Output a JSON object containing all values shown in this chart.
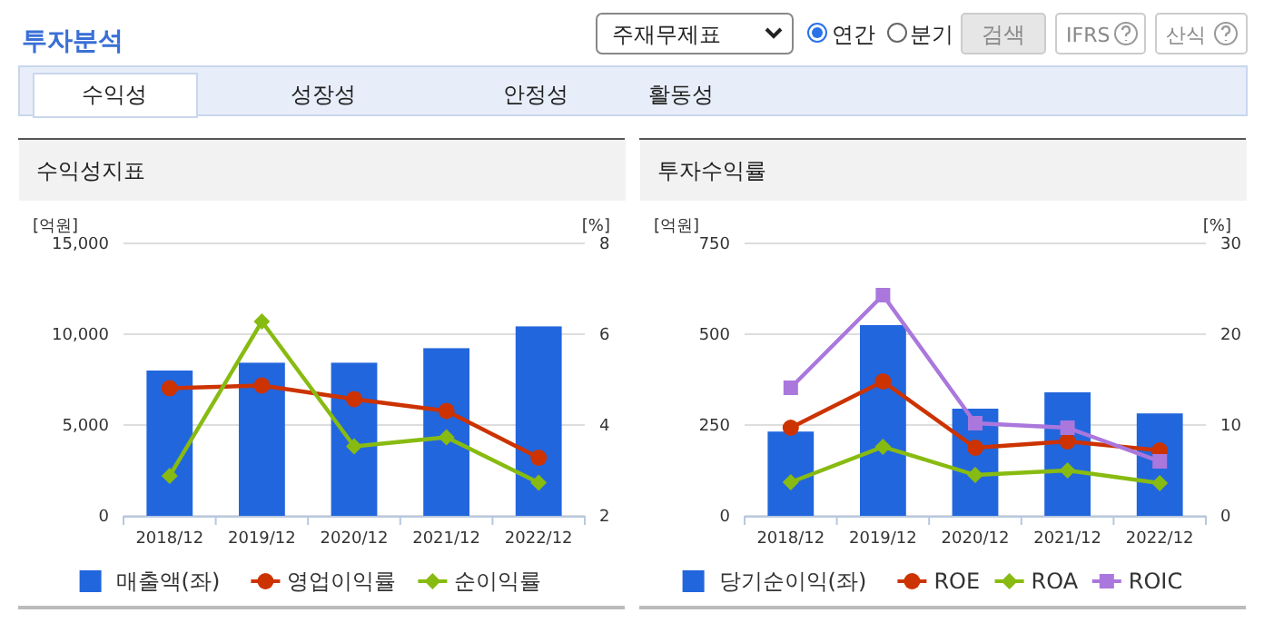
{
  "chart_data": [
    {
      "type": "other",
      "title": "투자분석",
      "annotations": [
        "주재무제표",
        "연간",
        "분기",
        "검색",
        "IFRS",
        "산식",
        "수익성",
        "성장성",
        "안정성",
        "활동성"
      ]
    },
    {
      "type": "bar",
      "title": "수익성지표",
      "ylabel": "[억원]",
      "y2label": "[%]",
      "categories": [
        "2018/12",
        "2019/12",
        "2020/12",
        "2021/12",
        "2022/12"
      ],
      "series": [
        {
          "name": "매출액(좌)",
          "type": "bar",
          "color": "#2266dd",
          "values": [
            8000,
            8430,
            8430,
            9230,
            10430
          ]
        },
        {
          "name": "영업이익률",
          "type": "line",
          "axis": "y2",
          "marker": "circle",
          "color": "#cc3300",
          "values": [
            4.81,
            4.87,
            4.57,
            4.31,
            3.28
          ]
        },
        {
          "name": "순이익률",
          "type": "line",
          "axis": "y2",
          "marker": "diamond",
          "color": "#88bb11",
          "values": [
            2.88,
            6.28,
            3.53,
            3.73,
            2.73
          ]
        }
      ],
      "ylim": [
        0,
        15000
      ],
      "yticks": [
        0,
        {
          "value": 5000,
          "label": "5,000"
        },
        {
          "value": 10000,
          "label": "10,000"
        },
        {
          "value": 15000,
          "label": "15,000"
        }
      ],
      "y2lim": [
        2,
        8
      ],
      "y2ticks": [
        2,
        4,
        6,
        8
      ],
      "grid": "y",
      "legend": "bottom"
    },
    {
      "type": "bar",
      "title": "투자수익률",
      "ylabel": "[억원]",
      "y2label": "[%]",
      "categories": [
        "2018/12",
        "2019/12",
        "2020/12",
        "2021/12",
        "2022/12"
      ],
      "series": [
        {
          "name": "당기순이익(좌)",
          "type": "bar",
          "color": "#2266dd",
          "values": [
            232,
            525,
            295,
            340,
            282
          ]
        },
        {
          "name": "ROE",
          "type": "line",
          "axis": "y2",
          "marker": "circle",
          "color": "#cc3300",
          "values": [
            9.7,
            14.8,
            7.5,
            8.2,
            7.2
          ]
        },
        {
          "name": "ROA",
          "type": "line",
          "axis": "y2",
          "marker": "diamond",
          "color": "#88bb11",
          "values": [
            3.7,
            7.6,
            4.5,
            5.0,
            3.6
          ]
        },
        {
          "name": "ROIC",
          "type": "line",
          "axis": "y2",
          "marker": "square",
          "color": "#aa77dd",
          "values": [
            14.1,
            24.3,
            10.2,
            9.7,
            6.0
          ]
        }
      ],
      "ylim": [
        0,
        750
      ],
      "yticks": [
        0,
        250,
        500,
        750
      ],
      "y2lim": [
        0,
        30
      ],
      "y2ticks": [
        0,
        10,
        20,
        30
      ],
      "grid": "y",
      "legend": "bottom"
    }
  ]
}
